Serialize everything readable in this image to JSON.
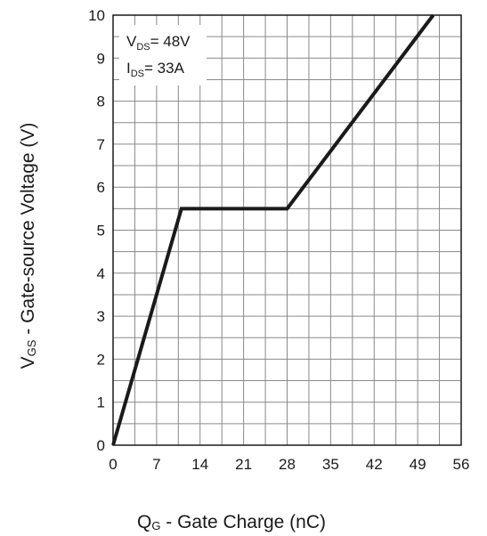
{
  "chart_data": {
    "type": "line",
    "xlabel": {
      "main": "Q",
      "sub": "G",
      "rest": " - Gate Charge (nC)"
    },
    "ylabel": {
      "main": "V",
      "sub": "GS",
      "rest": " - Gate-source Voltage (V)"
    },
    "xlim": [
      0,
      56
    ],
    "ylim": [
      0,
      10
    ],
    "x_ticks": [
      0,
      7,
      14,
      21,
      28,
      35,
      42,
      49,
      56
    ],
    "y_ticks": [
      0,
      1,
      2,
      3,
      4,
      5,
      6,
      7,
      8,
      9,
      10
    ],
    "grid": true,
    "series": [
      {
        "x": [
          0,
          11,
          28,
          51.5
        ],
        "y": [
          0,
          5.5,
          5.5,
          10
        ]
      }
    ],
    "annotations": [
      {
        "main": "V",
        "sub": "DS",
        "rest": "= 48V"
      },
      {
        "main": "I",
        "sub": "DS",
        "rest": "= 33A"
      }
    ]
  }
}
